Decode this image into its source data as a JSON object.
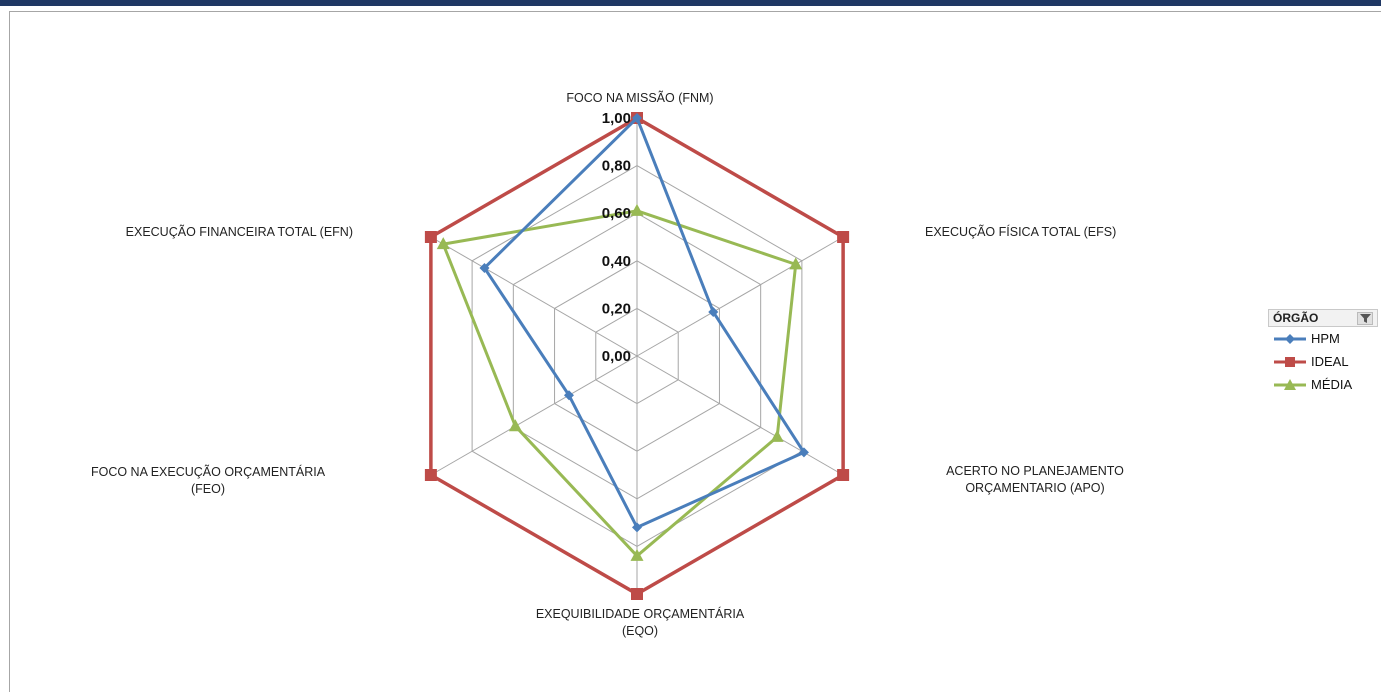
{
  "chart_data": {
    "type": "radar",
    "categories": [
      "FOCO NA MISSÃO (FNM)",
      "EXECUÇÃO FÍSICA TOTAL (EFS)",
      "ACERTO NO PLANEJAMENTO ORÇAMENTARIO (APO)",
      "EXEQUIBILIDADE ORÇAMENTÁRIA (EQO)",
      "FOCO NA EXECUÇÃO ORÇAMENTÁRIA (FEO)",
      "EXECUÇÃO FINANCEIRA TOTAL (EFN)"
    ],
    "category_lines": [
      [
        "FOCO NA MISSÃO (FNM)"
      ],
      [
        "EXECUÇÃO FÍSICA TOTAL (EFS)"
      ],
      [
        "ACERTO NO PLANEJAMENTO",
        "ORÇAMENTARIO (APO)"
      ],
      [
        "EXEQUIBILIDADE ORÇAMENTÁRIA",
        "(EQO)"
      ],
      [
        "FOCO NA EXECUÇÃO ORÇAMENTÁRIA",
        "(FEO)"
      ],
      [
        "EXECUÇÃO FINANCEIRA TOTAL (EFN)"
      ]
    ],
    "ticks": [
      "0,00",
      "0,20",
      "0,40",
      "0,60",
      "0,80",
      "1,00"
    ],
    "tick_values": [
      0,
      0.2,
      0.4,
      0.6,
      0.8,
      1.0
    ],
    "rlim": [
      0,
      1
    ],
    "grid": true,
    "legend_position": "right",
    "series": [
      {
        "name": "HPM",
        "color": "#4a7ebb",
        "marker": "diamond",
        "values": [
          1.0,
          0.37,
          0.81,
          0.72,
          0.33,
          0.74
        ]
      },
      {
        "name": "IDEAL",
        "color": "#be4b48",
        "marker": "square",
        "values": [
          1.0,
          1.0,
          1.0,
          1.0,
          1.0,
          1.0
        ]
      },
      {
        "name": "MÉDIA",
        "color": "#98b954",
        "marker": "triangle",
        "values": [
          0.61,
          0.77,
          0.68,
          0.84,
          0.59,
          0.94
        ]
      }
    ]
  },
  "legend": {
    "title": "ÓRGÃO",
    "filter_icon": "filter-icon"
  }
}
